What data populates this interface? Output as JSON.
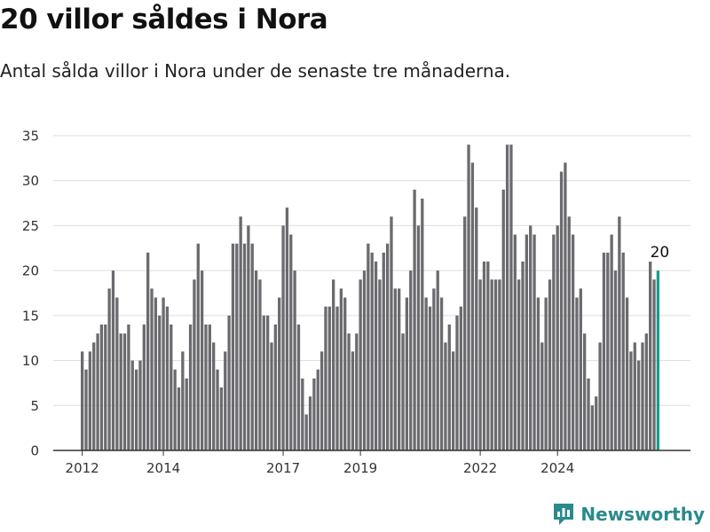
{
  "title": "20 villor såldes i Nora",
  "subtitle": "Antal sålda villor i Nora under de senaste tre månaderna.",
  "brand": {
    "name": "Newsworthy",
    "icon": "newsworthy-logo-icon",
    "color": "#2a8a8c"
  },
  "chart_data": {
    "type": "bar",
    "ylim": [
      0,
      35
    ],
    "yticks": [
      0,
      5,
      10,
      15,
      20,
      25,
      30,
      35
    ],
    "xticks": [
      {
        "label": "2012",
        "index": 0
      },
      {
        "label": "2014",
        "index": 21
      },
      {
        "label": "2017",
        "index": 52
      },
      {
        "label": "2019",
        "index": 72
      },
      {
        "label": "2022",
        "index": 103
      },
      {
        "label": "2024",
        "index": 123
      }
    ],
    "values": [
      11,
      9,
      11,
      12,
      13,
      14,
      14,
      18,
      20,
      17,
      13,
      13,
      14,
      10,
      9,
      10,
      14,
      22,
      18,
      17,
      15,
      17,
      16,
      14,
      9,
      7,
      11,
      8,
      14,
      19,
      23,
      20,
      14,
      14,
      12,
      9,
      7,
      11,
      15,
      23,
      23,
      26,
      23,
      25,
      23,
      20,
      19,
      15,
      15,
      12,
      14,
      17,
      25,
      27,
      24,
      20,
      14,
      8,
      4,
      6,
      8,
      9,
      11,
      16,
      16,
      19,
      16,
      18,
      17,
      13,
      11,
      13,
      19,
      20,
      23,
      22,
      21,
      19,
      22,
      23,
      26,
      18,
      18,
      13,
      17,
      20,
      29,
      25,
      28,
      17,
      16,
      18,
      20,
      17,
      12,
      14,
      11,
      15,
      16,
      26,
      34,
      32,
      27,
      19,
      21,
      21,
      19,
      19,
      19,
      29,
      34,
      34,
      24,
      19,
      21,
      24,
      25,
      24,
      17,
      12,
      17,
      19,
      24,
      25,
      31,
      32,
      26,
      24,
      17,
      18,
      13,
      8,
      5,
      6,
      12,
      22,
      22,
      24,
      20,
      26,
      22,
      17,
      11,
      12,
      10,
      12,
      13,
      21,
      19,
      20
    ],
    "bar_color": "#6b6a6e",
    "highlight_color": "#1a9a8f",
    "highlight_label": "20"
  }
}
